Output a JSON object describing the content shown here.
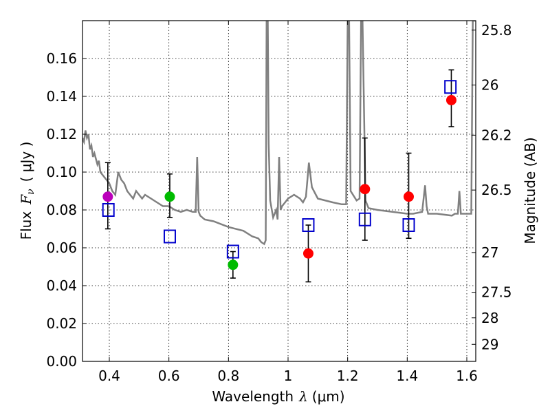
{
  "chart_data": {
    "type": "scatter",
    "xlabel": "Wavelength",
    "xlabel_symbol": "λ",
    "xlabel_unit": "(μm)",
    "ylabel": "Flux",
    "ylabel_symbol": "F",
    "ylabel_subscript": "ν",
    "ylabel_unit": "( μJy )",
    "y2label": "Magnitude (AB)",
    "xlim": [
      0.31,
      1.63
    ],
    "ylim": [
      0.0,
      0.18
    ],
    "xticks": [
      0.4,
      0.6,
      0.8,
      1.0,
      1.2,
      1.4,
      1.6
    ],
    "xtick_labels": [
      "0.4",
      "0.6",
      "0.8",
      "1",
      "1.2",
      "1.4",
      "1.6"
    ],
    "yticks": [
      0.0,
      0.02,
      0.04,
      0.06,
      0.08,
      0.1,
      0.12,
      0.14,
      0.16
    ],
    "ytick_labels": [
      "0.00",
      "0.02",
      "0.04",
      "0.06",
      "0.08",
      "0.10",
      "0.12",
      "0.14",
      "0.16"
    ],
    "y2ticks": [
      {
        "label": "25.8",
        "flux": 0.175
      },
      {
        "label": "26",
        "flux": 0.146
      },
      {
        "label": "26.2",
        "flux": 0.1195
      },
      {
        "label": "26.5",
        "flux": 0.0905
      },
      {
        "label": "27",
        "flux": 0.0575
      },
      {
        "label": "27.5",
        "flux": 0.0365
      },
      {
        "label": "28",
        "flux": 0.023
      },
      {
        "label": "29",
        "flux": 0.009
      }
    ],
    "grid": true,
    "colors": {
      "spectrum": "#808080",
      "model": "#0000cc",
      "violet": "#bb00bb",
      "green": "#00bb00",
      "red": "#ff0000",
      "errorbar": "#000000"
    },
    "series": [
      {
        "name": "model spectrum",
        "style": "line",
        "x": [
          0.31,
          0.315,
          0.32,
          0.325,
          0.33,
          0.335,
          0.34,
          0.345,
          0.35,
          0.36,
          0.365,
          0.37,
          0.38,
          0.39,
          0.4,
          0.41,
          0.42,
          0.425,
          0.43,
          0.44,
          0.45,
          0.46,
          0.47,
          0.48,
          0.49,
          0.5,
          0.51,
          0.52,
          0.54,
          0.56,
          0.58,
          0.6,
          0.62,
          0.64,
          0.66,
          0.68,
          0.69,
          0.695,
          0.7,
          0.705,
          0.72,
          0.75,
          0.8,
          0.85,
          0.88,
          0.9,
          0.91,
          0.92,
          0.925,
          0.928,
          0.932,
          0.935,
          0.94,
          0.95,
          0.96,
          0.965,
          0.97,
          0.975,
          0.98,
          0.99,
          1.0,
          1.02,
          1.04,
          1.05,
          1.06,
          1.07,
          1.08,
          1.1,
          1.15,
          1.18,
          1.195,
          1.2,
          1.205,
          1.21,
          1.23,
          1.24,
          1.245,
          1.25,
          1.26,
          1.27,
          1.3,
          1.35,
          1.4,
          1.42,
          1.45,
          1.46,
          1.465,
          1.47,
          1.48,
          1.5,
          1.55,
          1.56,
          1.57,
          1.575,
          1.58,
          1.59,
          1.6,
          1.61,
          1.615,
          1.62,
          1.625,
          1.63
        ],
        "y": [
          0.118,
          0.116,
          0.122,
          0.118,
          0.12,
          0.112,
          0.114,
          0.108,
          0.11,
          0.104,
          0.106,
          0.1,
          0.098,
          0.096,
          0.094,
          0.09,
          0.088,
          0.094,
          0.1,
          0.096,
          0.094,
          0.09,
          0.088,
          0.086,
          0.09,
          0.088,
          0.086,
          0.088,
          0.086,
          0.084,
          0.082,
          0.082,
          0.08,
          0.079,
          0.08,
          0.079,
          0.079,
          0.108,
          0.079,
          0.077,
          0.075,
          0.074,
          0.071,
          0.069,
          0.066,
          0.065,
          0.063,
          0.062,
          0.064,
          0.18,
          0.18,
          0.115,
          0.085,
          0.076,
          0.08,
          0.075,
          0.108,
          0.08,
          0.082,
          0.084,
          0.086,
          0.088,
          0.086,
          0.084,
          0.087,
          0.105,
          0.092,
          0.086,
          0.084,
          0.083,
          0.083,
          0.18,
          0.18,
          0.09,
          0.085,
          0.086,
          0.18,
          0.18,
          0.085,
          0.081,
          0.08,
          0.079,
          0.078,
          0.078,
          0.079,
          0.093,
          0.082,
          0.078,
          0.078,
          0.078,
          0.077,
          0.078,
          0.078,
          0.09,
          0.078,
          0.078,
          0.078,
          0.078,
          0.078,
          0.18,
          0.18,
          0.18
        ]
      },
      {
        "name": "model photometry",
        "style": "open-square",
        "x": [
          0.397,
          0.603,
          0.815,
          1.068,
          1.258,
          1.405,
          1.545
        ],
        "y": [
          0.08,
          0.066,
          0.058,
          0.072,
          0.075,
          0.072,
          0.145
        ]
      },
      {
        "name": "observed photometry",
        "style": "filled-circle",
        "x": [
          0.395,
          0.603,
          0.815,
          1.068,
          1.258,
          1.405,
          1.548
        ],
        "y": [
          0.087,
          0.087,
          0.051,
          0.057,
          0.091,
          0.087,
          0.138
        ],
        "yerr_low": [
          0.07,
          0.076,
          0.044,
          0.042,
          0.064,
          0.065,
          0.124
        ],
        "yerr_high": [
          0.105,
          0.099,
          0.058,
          0.072,
          0.118,
          0.11,
          0.154
        ],
        "point_colors": [
          "violet",
          "green",
          "green",
          "red",
          "red",
          "red",
          "red"
        ]
      }
    ]
  }
}
